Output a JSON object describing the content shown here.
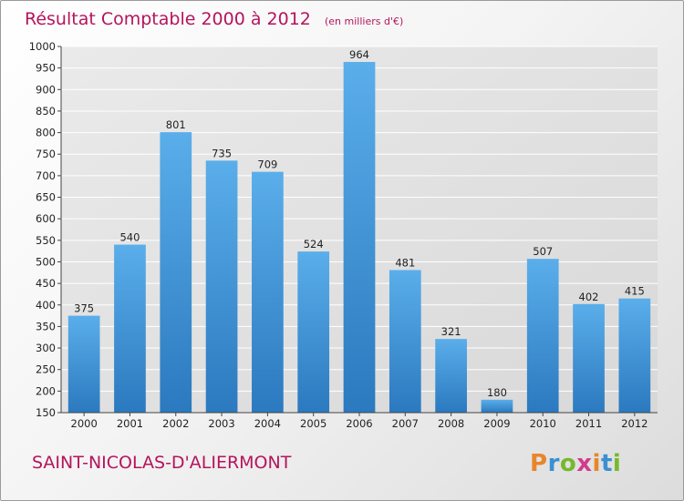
{
  "chart_data": {
    "type": "bar",
    "title": "Résultat Comptable 2000 à 2012",
    "subtitle": "(en milliers d'€)",
    "categories": [
      "2000",
      "2001",
      "2002",
      "2003",
      "2004",
      "2005",
      "2006",
      "2007",
      "2008",
      "2009",
      "2010",
      "2011",
      "2012"
    ],
    "values": [
      375,
      540,
      801,
      735,
      709,
      524,
      964,
      481,
      321,
      180,
      507,
      402,
      415
    ],
    "ylim": [
      150,
      1000
    ],
    "ytick_step": 50,
    "grid": true,
    "xlabel": "",
    "ylabel": "",
    "bar_color": "#3d8fd6"
  },
  "footer": {
    "commune": "SAINT-NICOLAS-D'ALIERMONT",
    "logo_text": "Proxiti",
    "logo_colors": [
      "#e8862a",
      "#3b8fd1",
      "#77b82c",
      "#d23c8c",
      "#e8862a",
      "#3b8fd1",
      "#77b82c"
    ]
  },
  "colors": {
    "title": "#b5145c",
    "grid": "#ffffff",
    "plot_background": "#e1e1e1"
  }
}
